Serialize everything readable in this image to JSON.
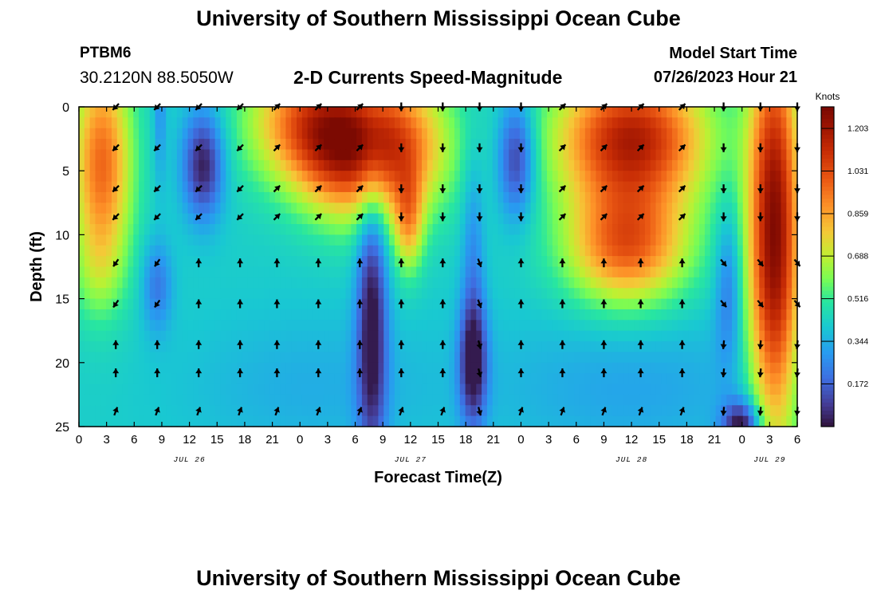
{
  "header": {
    "title": "University of Southern Mississippi Ocean Cube",
    "station": "PTBM6",
    "coordinates": "30.2120N  88.5050W",
    "subtitle": "2-D Currents Speed-Magnitude",
    "model_start_label": "Model Start Time",
    "model_start_value": "07/26/2023 Hour 21"
  },
  "footer": {
    "title": "University of Southern Mississippi Ocean Cube"
  },
  "chart_data": {
    "type": "heatmap",
    "title": "2-D Currents Speed-Magnitude",
    "xlabel": "Forecast Time(Z)",
    "ylabel": "Depth (ft)",
    "x_start_hour": 0,
    "x_end_hour": 78,
    "x_tick_labels": [
      "0",
      "3",
      "6",
      "9",
      "12",
      "15",
      "18",
      "21",
      "0",
      "3",
      "6",
      "9",
      "12",
      "15",
      "18",
      "21",
      "0",
      "3",
      "6",
      "9",
      "12",
      "15",
      "18",
      "21",
      "0",
      "3",
      "6"
    ],
    "x_tick_step_hours": 3,
    "date_labels": [
      {
        "label": "JUL 26",
        "hour": 12
      },
      {
        "label": "JUL 27",
        "hour": 36
      },
      {
        "label": "JUL 28",
        "hour": 60
      },
      {
        "label": "JUL 29",
        "hour": 75
      }
    ],
    "y_ticks": [
      0,
      5,
      10,
      15,
      20,
      25
    ],
    "ylim": [
      0,
      25
    ],
    "y_inverted": true,
    "colorbar": {
      "title": "Knots",
      "min": 0,
      "max": 1.29,
      "tick_values": [
        1.203,
        1.031,
        0.859,
        0.688,
        0.516,
        0.344,
        0.172
      ]
    },
    "arrow_columns_hours": [
      4,
      8.5,
      13,
      17.5,
      21.5,
      26,
      30.5,
      35,
      39.5,
      43.5,
      48,
      52.5,
      57,
      61,
      65.5,
      70,
      74,
      78
    ],
    "arrow_depths_ft": [
      0,
      3.2,
      6.4,
      8.6,
      12.2,
      15.4,
      18.6,
      20.8,
      23.8
    ]
  }
}
